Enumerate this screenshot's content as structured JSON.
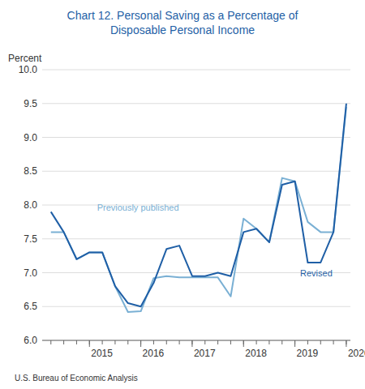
{
  "chart_data": {
    "type": "line",
    "title": "Chart 12. Personal Saving as a Percentage of\nDisposable Personal Income",
    "y_label": "Percent",
    "annotations": [
      "U.S. Bureau of Economic Analysis"
    ],
    "x": [
      2014.25,
      2014.5,
      2014.75,
      2015.0,
      2015.25,
      2015.5,
      2015.75,
      2016.0,
      2016.25,
      2016.5,
      2016.75,
      2017.0,
      2017.25,
      2017.5,
      2017.75,
      2018.0,
      2018.25,
      2018.5,
      2018.75,
      2019.0,
      2019.25,
      2019.5,
      2019.75,
      2020.0
    ],
    "series": [
      {
        "name": "Previously published",
        "color": "#7ab0d4",
        "values": [
          7.6,
          7.6,
          7.2,
          7.3,
          7.3,
          6.8,
          6.42,
          6.43,
          6.92,
          6.95,
          6.93,
          6.93,
          6.93,
          6.93,
          6.65,
          7.8,
          7.65,
          7.45,
          8.4,
          8.35,
          7.75,
          7.6,
          7.6,
          9.45
        ]
      },
      {
        "name": "Revised",
        "color": "#1f5fa6",
        "values": [
          7.9,
          7.6,
          7.2,
          7.3,
          7.3,
          6.8,
          6.55,
          6.5,
          6.85,
          7.35,
          7.4,
          6.95,
          6.95,
          7.0,
          6.95,
          7.6,
          7.65,
          7.45,
          8.3,
          8.35,
          7.15,
          7.15,
          7.6,
          9.5
        ]
      }
    ],
    "xlim": [
      2014.08,
      2020.08
    ],
    "xticks": [
      2015,
      2016,
      2017,
      2018,
      2019,
      2020
    ],
    "ylim": [
      6.0,
      10.0
    ],
    "yticks": [
      {
        "value": 6.0,
        "label": "6.0"
      },
      6.5,
      {
        "value": 7.0,
        "label": "7.0"
      },
      7.5,
      {
        "value": 8.0,
        "label": "8.0"
      },
      8.5,
      {
        "value": 9.0,
        "label": "9.0"
      },
      9.5,
      {
        "value": 10.0,
        "label": "10.0"
      }
    ],
    "grid": true
  }
}
